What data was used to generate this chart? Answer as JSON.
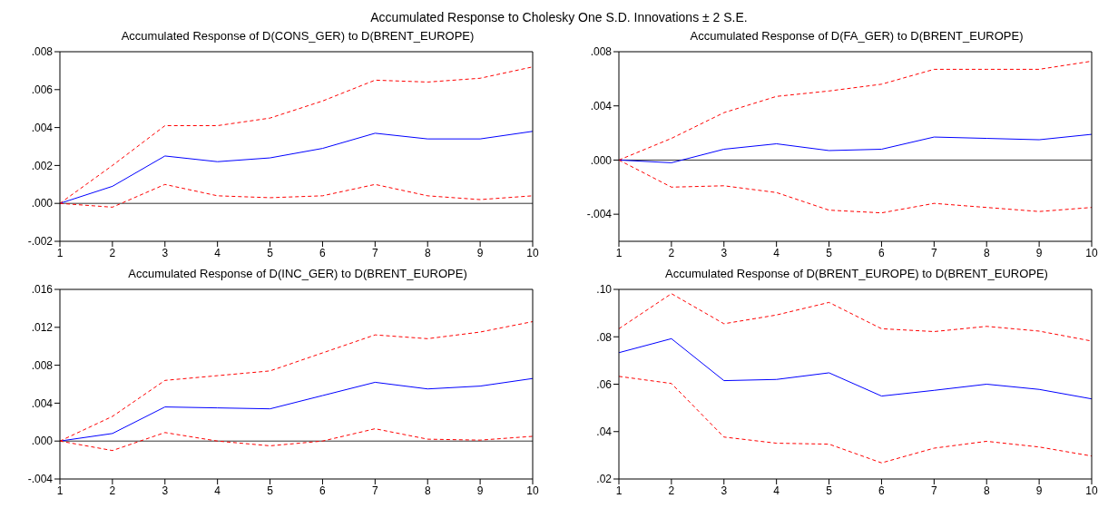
{
  "chart_data": [
    {
      "type": "other",
      "title": "Accumulated Response to Cholesky One S.D. Innovations ± 2 S.E."
    },
    {
      "type": "line",
      "title": "Accumulated Response of D(CONS_GER) to D(BRENT_EUROPE)",
      "categories": [
        "1",
        "2",
        "3",
        "4",
        "5",
        "6",
        "7",
        "8",
        "9",
        "10"
      ],
      "marker": "none",
      "grid": false,
      "legend": false,
      "ylim": [
        -0.002,
        0.008
      ],
      "yticks": [
        {
          "value": -0.002,
          "label": "-.002"
        },
        {
          "value": 0,
          "label": ".000"
        },
        {
          "value": 0.002,
          "label": ".002"
        },
        {
          "value": 0.004,
          "label": ".004"
        },
        {
          "value": 0.006,
          "label": ".006"
        },
        {
          "value": 0.008,
          "label": ".008"
        }
      ],
      "ref_lines": [
        {
          "axis": "y",
          "value": 0,
          "color": "#333333"
        }
      ],
      "series": [
        {
          "color": "#0000ff",
          "line_style": "solid",
          "values": [
            0,
            0.0009,
            0.0025,
            0.0022,
            0.0024,
            0.0029,
            0.0037,
            0.0034,
            0.0034,
            0.0038
          ]
        },
        {
          "color": "#ff0000",
          "line_style": "dashed",
          "values": [
            0,
            0.002,
            0.0041,
            0.0041,
            0.0045,
            0.0054,
            0.0065,
            0.0064,
            0.0066,
            0.0072
          ]
        },
        {
          "color": "#ff0000",
          "line_style": "dashed",
          "values": [
            0,
            -0.0002,
            0.001,
            0.0004,
            0.0003,
            0.0004,
            0.001,
            0.0004,
            0.0002,
            0.0004
          ]
        }
      ]
    },
    {
      "type": "line",
      "title": "Accumulated Response of D(FA_GER) to D(BRENT_EUROPE)",
      "categories": [
        "1",
        "2",
        "3",
        "4",
        "5",
        "6",
        "7",
        "8",
        "9",
        "10"
      ],
      "marker": "none",
      "grid": false,
      "legend": false,
      "ylim": [
        -0.006,
        0.008
      ],
      "yticks": [
        {
          "value": -0.004,
          "label": "-.004"
        },
        {
          "value": 0,
          "label": ".000"
        },
        {
          "value": 0.004,
          "label": ".004"
        },
        {
          "value": 0.008,
          "label": ".008"
        }
      ],
      "ref_lines": [
        {
          "axis": "y",
          "value": 0,
          "color": "#333333"
        }
      ],
      "series": [
        {
          "color": "#0000ff",
          "line_style": "solid",
          "values": [
            0,
            -0.0002,
            0.0008,
            0.0012,
            0.0007,
            0.0008,
            0.0017,
            0.0016,
            0.0015,
            0.0019
          ]
        },
        {
          "color": "#ff0000",
          "line_style": "dashed",
          "values": [
            0,
            0.0016,
            0.0035,
            0.0047,
            0.0051,
            0.0056,
            0.0067,
            0.0067,
            0.0067,
            0.0073
          ]
        },
        {
          "color": "#ff0000",
          "line_style": "dashed",
          "values": [
            0,
            -0.002,
            -0.0019,
            -0.0024,
            -0.0037,
            -0.0039,
            -0.0032,
            -0.0035,
            -0.0038,
            -0.0035
          ]
        }
      ]
    },
    {
      "type": "line",
      "title": "Accumulated Response of D(INC_GER) to D(BRENT_EUROPE)",
      "categories": [
        "1",
        "2",
        "3",
        "4",
        "5",
        "6",
        "7",
        "8",
        "9",
        "10"
      ],
      "marker": "none",
      "grid": false,
      "legend": false,
      "ylim": [
        -0.004,
        0.016
      ],
      "yticks": [
        {
          "value": -0.004,
          "label": "-.004"
        },
        {
          "value": 0,
          "label": ".000"
        },
        {
          "value": 0.004,
          "label": ".004"
        },
        {
          "value": 0.008,
          "label": ".008"
        },
        {
          "value": 0.012,
          "label": ".012"
        },
        {
          "value": 0.016,
          "label": ".016"
        }
      ],
      "ref_lines": [
        {
          "axis": "y",
          "value": 0,
          "color": "#333333"
        }
      ],
      "series": [
        {
          "color": "#0000ff",
          "line_style": "solid",
          "values": [
            0,
            0.0008,
            0.0036,
            0.0035,
            0.0034,
            0.0048,
            0.0062,
            0.0055,
            0.0058,
            0.0066
          ]
        },
        {
          "color": "#ff0000",
          "line_style": "dashed",
          "values": [
            0,
            0.0026,
            0.0064,
            0.0069,
            0.0074,
            0.0093,
            0.0112,
            0.0108,
            0.0115,
            0.0126
          ]
        },
        {
          "color": "#ff0000",
          "line_style": "dashed",
          "values": [
            0,
            -0.001,
            0.0009,
            0,
            -0.0005,
            0,
            0.0013,
            0.0002,
            0.0001,
            0.0005
          ]
        }
      ]
    },
    {
      "type": "line",
      "title": "Accumulated Response of D(BRENT_EUROPE) to D(BRENT_EUROPE)",
      "categories": [
        "1",
        "2",
        "3",
        "4",
        "5",
        "6",
        "7",
        "8",
        "9",
        "10"
      ],
      "marker": "none",
      "grid": false,
      "legend": false,
      "ylim": [
        0.02,
        0.1
      ],
      "yticks": [
        {
          "value": 0.02,
          "label": ".02"
        },
        {
          "value": 0.04,
          "label": ".04"
        },
        {
          "value": 0.06,
          "label": ".06"
        },
        {
          "value": 0.08,
          "label": ".08"
        },
        {
          "value": 0.1,
          "label": ".10"
        }
      ],
      "series": [
        {
          "color": "#0000ff",
          "line_style": "solid",
          "values": [
            0.0733,
            0.0792,
            0.0615,
            0.062,
            0.0648,
            0.055,
            0.0574,
            0.06,
            0.0578,
            0.0538
          ]
        },
        {
          "color": "#ff0000",
          "line_style": "dashed",
          "values": [
            0.0834,
            0.0982,
            0.0855,
            0.0892,
            0.0945,
            0.0834,
            0.0822,
            0.0844,
            0.0824,
            0.0782
          ]
        },
        {
          "color": "#ff0000",
          "line_style": "dashed",
          "values": [
            0.0633,
            0.0603,
            0.0377,
            0.0351,
            0.0347,
            0.0268,
            0.033,
            0.0359,
            0.0335,
            0.0297
          ]
        }
      ]
    }
  ]
}
